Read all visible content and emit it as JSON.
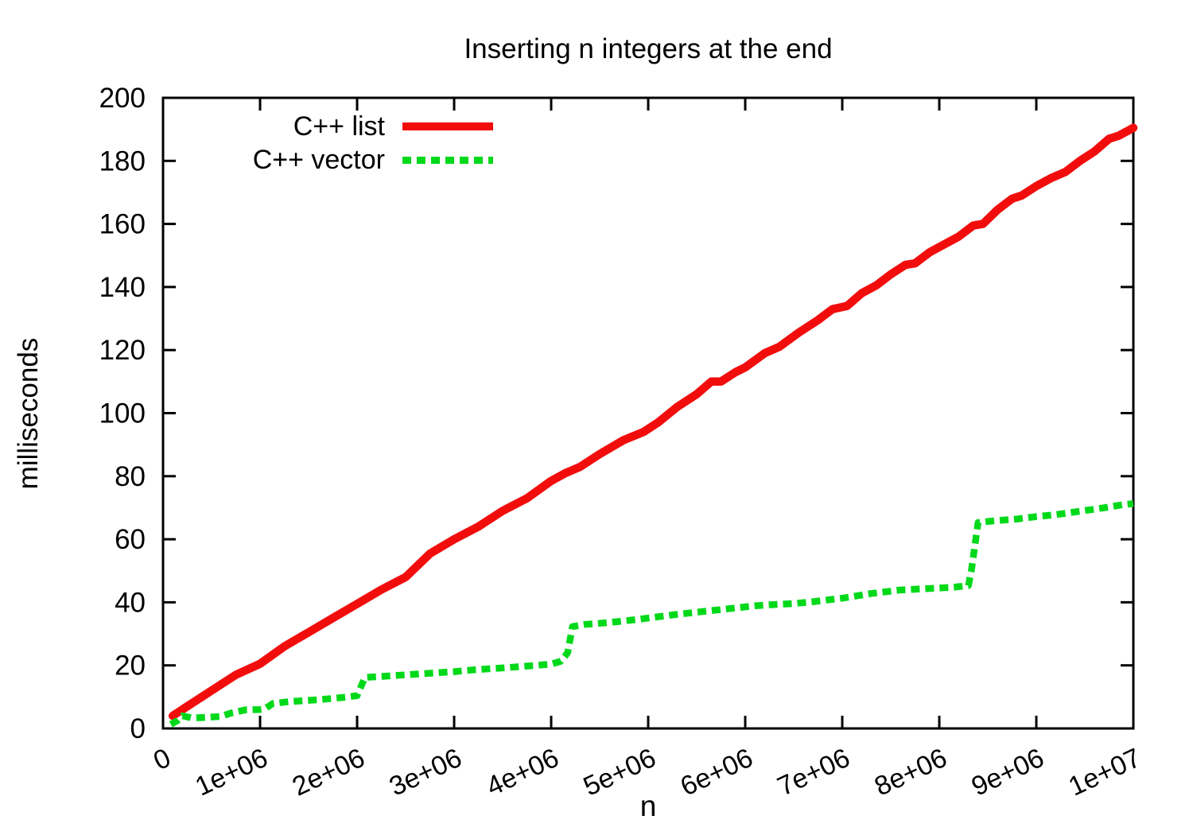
{
  "chart_data": {
    "type": "line",
    "title": "Inserting n integers at the end",
    "xlabel": "n",
    "ylabel": "milliseconds",
    "xlim": [
      0,
      10000000
    ],
    "ylim": [
      0,
      200
    ],
    "grid": false,
    "background_color": "#ffffff",
    "axis_color": "#000000",
    "legend_position": "top-left-inside",
    "x_ticks": {
      "values": [
        0,
        1000000,
        2000000,
        3000000,
        4000000,
        5000000,
        6000000,
        7000000,
        8000000,
        9000000,
        10000000
      ],
      "labels": [
        "0",
        "1e+06",
        "2e+06",
        "3e+06",
        "4e+06",
        "5e+06",
        "6e+06",
        "7e+06",
        "8e+06",
        "9e+06",
        "1e+07"
      ],
      "label_rotation_deg": -25
    },
    "y_ticks": {
      "values": [
        0,
        20,
        40,
        60,
        80,
        100,
        120,
        140,
        160,
        180,
        200
      ],
      "labels": [
        "0",
        "20",
        "40",
        "60",
        "80",
        "100",
        "120",
        "140",
        "160",
        "180",
        "200"
      ]
    },
    "series": [
      {
        "name": "C++ list",
        "color": "#f20d0d",
        "style": "solid",
        "line_width": 10.5,
        "points": [
          [
            100000,
            4
          ],
          [
            250000,
            7
          ],
          [
            500000,
            12
          ],
          [
            750000,
            17
          ],
          [
            1000000,
            20.5
          ],
          [
            1250000,
            26
          ],
          [
            1500000,
            30.5
          ],
          [
            1750000,
            35
          ],
          [
            2000000,
            39.5
          ],
          [
            2250000,
            44
          ],
          [
            2500000,
            48
          ],
          [
            2750000,
            55.4
          ],
          [
            3000000,
            60
          ],
          [
            3250000,
            64
          ],
          [
            3500000,
            69
          ],
          [
            3750000,
            73
          ],
          [
            4000000,
            78.5
          ],
          [
            4150000,
            81
          ],
          [
            4300000,
            83
          ],
          [
            4500000,
            87
          ],
          [
            4750000,
            91.5
          ],
          [
            4950000,
            94
          ],
          [
            5100000,
            97
          ],
          [
            5300000,
            102
          ],
          [
            5500000,
            106
          ],
          [
            5650000,
            110
          ],
          [
            5750000,
            110
          ],
          [
            5900000,
            113
          ],
          [
            6000000,
            114.5
          ],
          [
            6200000,
            119
          ],
          [
            6350000,
            121
          ],
          [
            6550000,
            125.5
          ],
          [
            6750000,
            129.5
          ],
          [
            6900000,
            133
          ],
          [
            7050000,
            134
          ],
          [
            7200000,
            138
          ],
          [
            7350000,
            140.5
          ],
          [
            7500000,
            144
          ],
          [
            7650000,
            147
          ],
          [
            7750000,
            147.5
          ],
          [
            7900000,
            151
          ],
          [
            8050000,
            153.5
          ],
          [
            8200000,
            156
          ],
          [
            8350000,
            159.5
          ],
          [
            8450000,
            160
          ],
          [
            8600000,
            164.5
          ],
          [
            8750000,
            168
          ],
          [
            8850000,
            169
          ],
          [
            9000000,
            172
          ],
          [
            9150000,
            174.5
          ],
          [
            9300000,
            176.5
          ],
          [
            9450000,
            180
          ],
          [
            9600000,
            183
          ],
          [
            9750000,
            187
          ],
          [
            9850000,
            188
          ],
          [
            10000000,
            190.5
          ]
        ]
      },
      {
        "name": "C++ vector",
        "color": "#00d91a",
        "style": "dashed",
        "line_width": 8.5,
        "points": [
          [
            80000,
            1.3
          ],
          [
            150000,
            2.5
          ],
          [
            200000,
            4
          ],
          [
            300000,
            3.3
          ],
          [
            450000,
            3.5
          ],
          [
            600000,
            3.8
          ],
          [
            700000,
            4.9
          ],
          [
            850000,
            5.9
          ],
          [
            1000000,
            6
          ],
          [
            1050000,
            6.2
          ],
          [
            1130000,
            7.9
          ],
          [
            1300000,
            8.5
          ],
          [
            1600000,
            9.1
          ],
          [
            1850000,
            9.8
          ],
          [
            2000000,
            10.4
          ],
          [
            2080000,
            16.2
          ],
          [
            2200000,
            16.4
          ],
          [
            2500000,
            17
          ],
          [
            2800000,
            17.6
          ],
          [
            3000000,
            18
          ],
          [
            3200000,
            18.6
          ],
          [
            3500000,
            19.2
          ],
          [
            3800000,
            19.9
          ],
          [
            4000000,
            20.4
          ],
          [
            4100000,
            21.3
          ],
          [
            4170000,
            24
          ],
          [
            4220000,
            32.3
          ],
          [
            4350000,
            33
          ],
          [
            4600000,
            33.6
          ],
          [
            4900000,
            34.6
          ],
          [
            5000000,
            35
          ],
          [
            5300000,
            36.2
          ],
          [
            5600000,
            37.2
          ],
          [
            5900000,
            38.2
          ],
          [
            6100000,
            38.9
          ],
          [
            6300000,
            39.3
          ],
          [
            6500000,
            39.6
          ],
          [
            6700000,
            40.2
          ],
          [
            7000000,
            41.3
          ],
          [
            7300000,
            42.8
          ],
          [
            7600000,
            43.9
          ],
          [
            7900000,
            44.4
          ],
          [
            8150000,
            44.8
          ],
          [
            8300000,
            45.3
          ],
          [
            8330000,
            50
          ],
          [
            8400000,
            65.3
          ],
          [
            8550000,
            65.8
          ],
          [
            8800000,
            66.4
          ],
          [
            9000000,
            67.2
          ],
          [
            9200000,
            67.8
          ],
          [
            9500000,
            69.1
          ],
          [
            9700000,
            70
          ],
          [
            9900000,
            71
          ],
          [
            10000000,
            71.3
          ]
        ]
      }
    ]
  }
}
